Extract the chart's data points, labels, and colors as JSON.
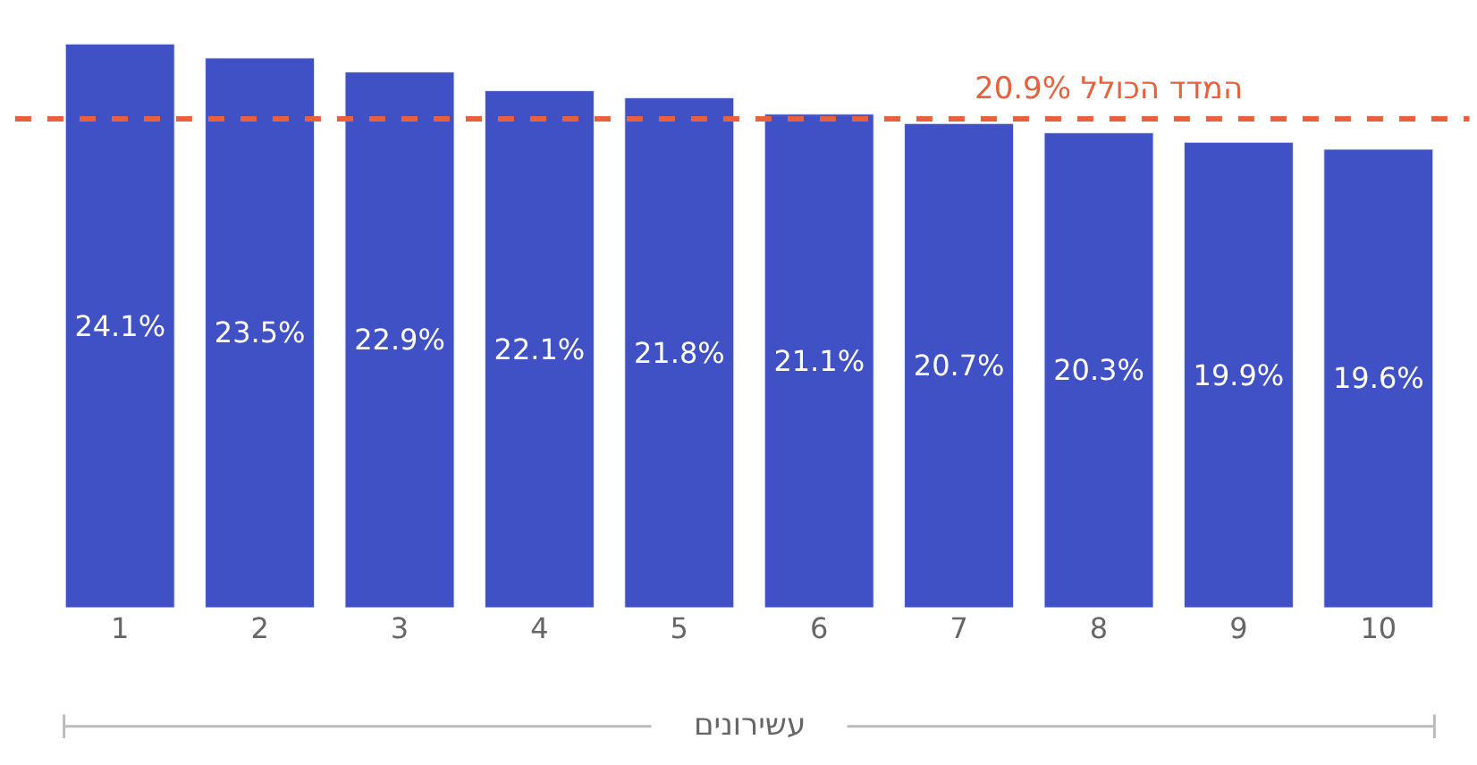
{
  "chart_data": {
    "type": "bar",
    "xlabel": "עשירונים",
    "categories": [
      "1",
      "2",
      "3",
      "4",
      "5",
      "6",
      "7",
      "8",
      "9",
      "10"
    ],
    "values": [
      24.1,
      23.5,
      22.9,
      22.1,
      21.8,
      21.1,
      20.7,
      20.3,
      19.9,
      19.6
    ],
    "value_labels": [
      "24.1%",
      "23.5%",
      "22.9%",
      "22.1%",
      "21.8%",
      "21.1%",
      "20.7%",
      "20.3%",
      "19.9%",
      "19.6%"
    ],
    "color": "#4051c6",
    "tick_labels": "x",
    "ref_lines": [
      {
        "axis": "y",
        "value": 20.9,
        "label": "המדד הכולל 20.9%",
        "color": "#e8603c",
        "line_style": "dashed"
      }
    ]
  }
}
